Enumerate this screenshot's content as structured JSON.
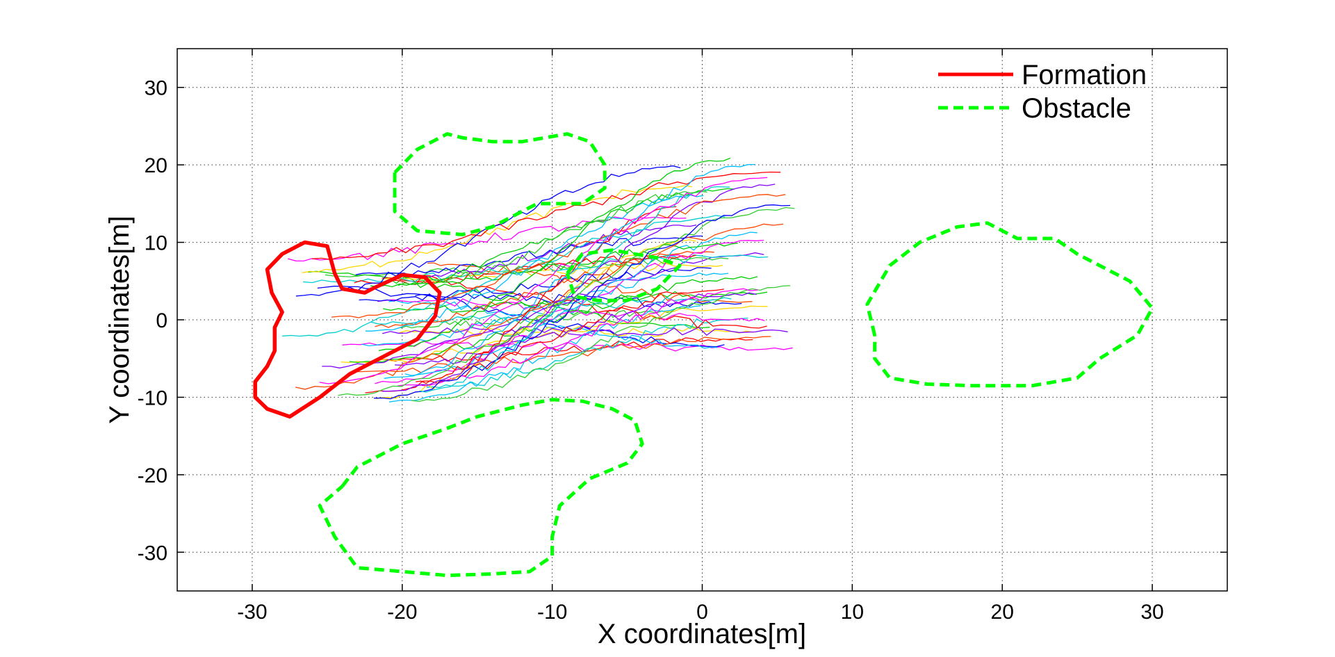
{
  "chart_data": {
    "type": "line",
    "title": "",
    "xlabel": "X coordinates[m]",
    "ylabel": "Y coordinates[m]",
    "xlim": [
      -35,
      35
    ],
    "ylim": [
      -35,
      35
    ],
    "x_ticks": [
      -30,
      -20,
      -10,
      0,
      10,
      20,
      30
    ],
    "y_ticks": [
      -30,
      -20,
      -10,
      0,
      10,
      20,
      30
    ],
    "grid": true,
    "legend_position": "top-right",
    "legend": [
      {
        "label": "Formation",
        "color": "#ff0000",
        "style": "solid"
      },
      {
        "label": "Obstacle",
        "color": "#00ff00",
        "style": "dashed"
      }
    ],
    "colors": {
      "formation": "#ff0000",
      "obstacle": "#00ff00",
      "trajectory_palette": [
        "#ff0000",
        "#ff00ff",
        "#0000ff",
        "#00bfff",
        "#00cc00",
        "#ffd700",
        "#8000ff",
        "#ff4500",
        "#00ced1",
        "#32cd32"
      ]
    },
    "formation": [
      [
        -22,
        4
      ],
      [
        -20,
        5.8
      ],
      [
        -18.5,
        5.5
      ],
      [
        -17.5,
        3.5
      ],
      [
        -17.8,
        0.5
      ],
      [
        -19,
        -2.5
      ],
      [
        -21,
        -4.5
      ],
      [
        -23.5,
        -7
      ],
      [
        -25.5,
        -10
      ],
      [
        -27.5,
        -12.5
      ],
      [
        -29,
        -11.5
      ],
      [
        -29.8,
        -10
      ],
      [
        -29.8,
        -8
      ],
      [
        -29,
        -6
      ],
      [
        -28.5,
        -4
      ],
      [
        -28.5,
        -1
      ],
      [
        -28,
        1
      ],
      [
        -28.7,
        3.5
      ],
      [
        -29,
        6.5
      ],
      [
        -28,
        8.5
      ],
      [
        -26.5,
        10
      ],
      [
        -25,
        9.5
      ],
      [
        -24.5,
        6
      ],
      [
        -24,
        4
      ],
      [
        -22.5,
        3.5
      ],
      [
        -22,
        4
      ]
    ],
    "obstacles": [
      [
        [
          -20.5,
          19
        ],
        [
          -20.5,
          14
        ],
        [
          -19,
          11.5
        ],
        [
          -16,
          11
        ],
        [
          -14,
          12
        ],
        [
          -12,
          14
        ],
        [
          -11,
          15
        ],
        [
          -8,
          15
        ],
        [
          -6.5,
          17
        ],
        [
          -6.5,
          20
        ],
        [
          -7.5,
          23
        ],
        [
          -9,
          24
        ],
        [
          -12,
          23
        ],
        [
          -14,
          23
        ],
        [
          -16,
          23.5
        ],
        [
          -17,
          24
        ],
        [
          -19,
          22
        ],
        [
          -20.5,
          19
        ]
      ],
      [
        [
          -9,
          6
        ],
        [
          -8,
          8.5
        ],
        [
          -6,
          9
        ],
        [
          -3,
          8
        ],
        [
          -1.5,
          7
        ],
        [
          -3,
          4
        ],
        [
          -5,
          2.5
        ],
        [
          -7,
          2.5
        ],
        [
          -8.5,
          3
        ],
        [
          -9,
          6
        ]
      ],
      [
        [
          -24,
          -21.5
        ],
        [
          -23,
          -19
        ],
        [
          -20,
          -16
        ],
        [
          -17,
          -14
        ],
        [
          -15,
          -12.5
        ],
        [
          -12,
          -11
        ],
        [
          -10,
          -10.3
        ],
        [
          -8,
          -10.5
        ],
        [
          -6,
          -11.5
        ],
        [
          -4.5,
          -13
        ],
        [
          -4,
          -16
        ],
        [
          -5,
          -18.5
        ],
        [
          -7.5,
          -20.5
        ],
        [
          -9.5,
          -24
        ],
        [
          -10,
          -28
        ],
        [
          -10,
          -30.5
        ],
        [
          -11.5,
          -32.5
        ],
        [
          -14,
          -32.8
        ],
        [
          -17,
          -33
        ],
        [
          -20,
          -32.5
        ],
        [
          -23,
          -32
        ],
        [
          -24.5,
          -28
        ],
        [
          -25.5,
          -24
        ],
        [
          -24,
          -21.5
        ]
      ],
      [
        [
          11.5,
          -2
        ],
        [
          11,
          2
        ],
        [
          12.5,
          7
        ],
        [
          14.5,
          10
        ],
        [
          17,
          12
        ],
        [
          19,
          12.5
        ],
        [
          21,
          10.5
        ],
        [
          23.5,
          10.5
        ],
        [
          25,
          8.5
        ],
        [
          28.5,
          5
        ],
        [
          30,
          1.5
        ],
        [
          29,
          -2
        ],
        [
          26.5,
          -5
        ],
        [
          25,
          -7.5
        ],
        [
          22,
          -8.5
        ],
        [
          18,
          -8.5
        ],
        [
          15,
          -8.3
        ],
        [
          12.5,
          -7.5
        ],
        [
          11.5,
          -5
        ],
        [
          11.5,
          -2
        ]
      ]
    ]
  }
}
